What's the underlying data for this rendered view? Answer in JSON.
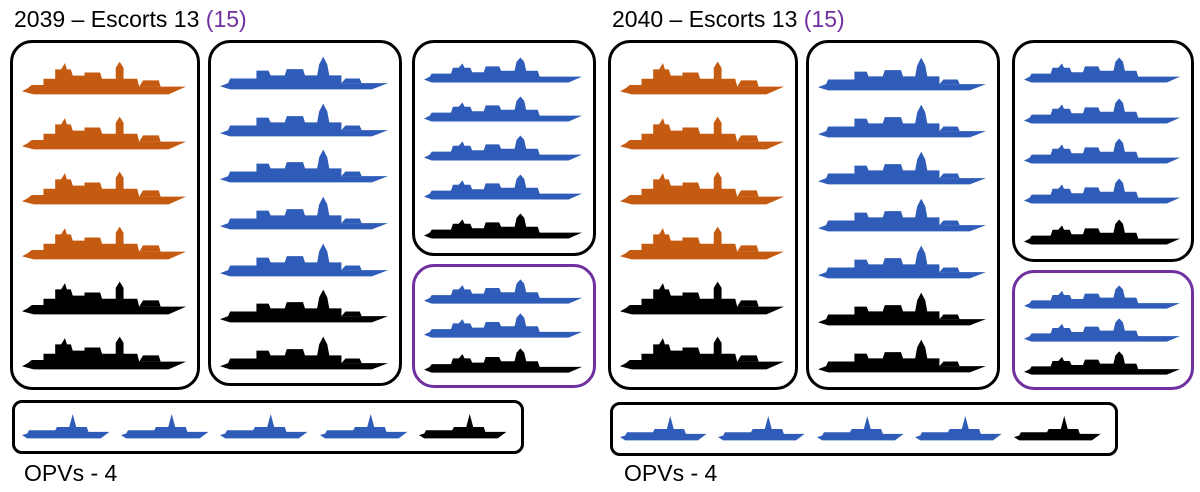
{
  "colors": {
    "orange": "#c55a11",
    "blue": "#2e5cb8",
    "black": "#000000",
    "purple": "#7030a0"
  },
  "panels": [
    {
      "title_main": "2039 – Escorts 13",
      "title_extra": "(15)",
      "opv_label": "OPVs - 4",
      "groups": [
        {
          "name": "type-45-destroyers",
          "border": "black",
          "ships": [
            "orange",
            "orange",
            "orange",
            "orange",
            "black",
            "black"
          ],
          "ship_icon": "destroyer-icon"
        },
        {
          "name": "frigates-large",
          "border": "black",
          "ships": [
            "blue",
            "blue",
            "blue",
            "blue",
            "blue",
            "black",
            "black"
          ],
          "ship_icon": "frigate-icon"
        },
        {
          "name": "frigates-small",
          "border": "black",
          "ships": [
            "blue",
            "blue",
            "blue",
            "blue",
            "black"
          ],
          "ship_icon": "light-frigate-icon"
        },
        {
          "name": "additional-frigates",
          "border": "purple",
          "ships": [
            "blue",
            "blue",
            "black"
          ],
          "ship_icon": "light-frigate-icon"
        }
      ],
      "opvs": [
        "blue",
        "blue",
        "blue",
        "blue",
        "black"
      ]
    },
    {
      "title_main": "2040 – Escorts 13",
      "title_extra": "(15)",
      "opv_label": "OPVs - 4",
      "groups": [
        {
          "name": "type-45-destroyers",
          "border": "black",
          "ships": [
            "orange",
            "orange",
            "orange",
            "orange",
            "black",
            "black"
          ],
          "ship_icon": "destroyer-icon"
        },
        {
          "name": "frigates-large",
          "border": "black",
          "ships": [
            "blue",
            "blue",
            "blue",
            "blue",
            "blue",
            "black",
            "black"
          ],
          "ship_icon": "frigate-icon"
        },
        {
          "name": "frigates-small",
          "border": "black",
          "ships": [
            "blue",
            "blue",
            "blue",
            "blue",
            "black"
          ],
          "ship_icon": "light-frigate-icon"
        },
        {
          "name": "additional-frigates",
          "border": "purple",
          "ships": [
            "blue",
            "blue",
            "black"
          ],
          "ship_icon": "light-frigate-icon"
        }
      ],
      "opvs": [
        "blue",
        "blue",
        "blue",
        "blue",
        "black"
      ]
    }
  ]
}
